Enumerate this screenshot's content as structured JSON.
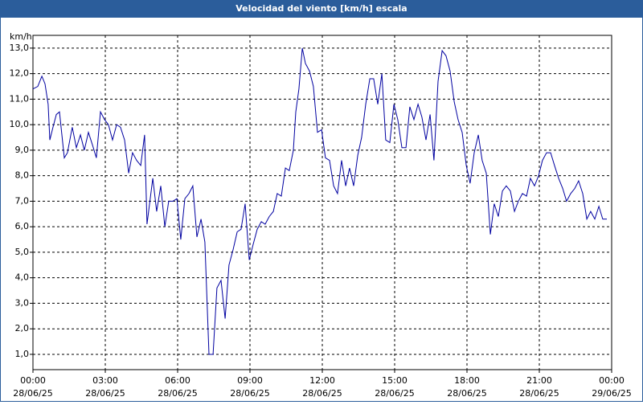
{
  "chart_data": {
    "type": "line",
    "title": "Velocidad del viento [km/h] escala",
    "y_unit": "km/h",
    "grid": true,
    "xlim": [
      0,
      24
    ],
    "ylim": [
      0.4,
      13.5
    ],
    "xticks": [
      {
        "value": 0,
        "label": "00:00",
        "date": "28/06/25"
      },
      {
        "value": 3,
        "label": "03:00",
        "date": "28/06/25"
      },
      {
        "value": 6,
        "label": "06:00",
        "date": "28/06/25"
      },
      {
        "value": 9,
        "label": "09:00",
        "date": "28/06/25"
      },
      {
        "value": 12,
        "label": "12:00",
        "date": "28/06/25"
      },
      {
        "value": 15,
        "label": "15:00",
        "date": "28/06/25"
      },
      {
        "value": 18,
        "label": "18:00",
        "date": "28/06/25"
      },
      {
        "value": 21,
        "label": "21:00",
        "date": "28/06/25"
      },
      {
        "value": 24,
        "label": "00:00",
        "date": "29/06/25"
      }
    ],
    "yticks": [
      {
        "value": 1,
        "label": "1,0"
      },
      {
        "value": 2,
        "label": "2,0"
      },
      {
        "value": 3,
        "label": "3,0"
      },
      {
        "value": 4,
        "label": "4,0"
      },
      {
        "value": 5,
        "label": "5,0"
      },
      {
        "value": 6,
        "label": "6,0"
      },
      {
        "value": 7,
        "label": "7,0"
      },
      {
        "value": 8,
        "label": "8,0"
      },
      {
        "value": 9,
        "label": "9,0"
      },
      {
        "value": 10,
        "label": "10,0"
      },
      {
        "value": 11,
        "label": "11,0"
      },
      {
        "value": 12,
        "label": "12,0"
      },
      {
        "value": 13,
        "label": "13,0"
      }
    ],
    "color": "#0000a0",
    "x": [
      0,
      0.2,
      0.37,
      0.5,
      0.63,
      0.7,
      0.83,
      0.97,
      1.1,
      1.3,
      1.43,
      1.63,
      1.8,
      1.97,
      2.13,
      2.3,
      2.47,
      2.63,
      2.8,
      2.97,
      3.13,
      3.3,
      3.47,
      3.63,
      3.8,
      3.97,
      4.13,
      4.3,
      4.47,
      4.63,
      4.73,
      4.97,
      5.13,
      5.3,
      5.47,
      5.63,
      5.8,
      5.97,
      6.13,
      6.3,
      6.47,
      6.63,
      6.8,
      6.97,
      7.13,
      7.3,
      7.47,
      7.63,
      7.8,
      7.97,
      8.13,
      8.3,
      8.47,
      8.63,
      8.8,
      8.97,
      9.13,
      9.3,
      9.47,
      9.63,
      9.8,
      9.97,
      10.13,
      10.3,
      10.47,
      10.63,
      10.8,
      10.9,
      11.03,
      11.17,
      11.3,
      11.47,
      11.63,
      11.8,
      11.97,
      12.13,
      12.3,
      12.47,
      12.63,
      12.8,
      12.97,
      13.13,
      13.3,
      13.47,
      13.63,
      13.8,
      13.97,
      14.13,
      14.3,
      14.47,
      14.63,
      14.8,
      14.97,
      15.13,
      15.3,
      15.47,
      15.63,
      15.8,
      15.97,
      16.13,
      16.3,
      16.47,
      16.63,
      16.8,
      16.97,
      17.13,
      17.3,
      17.47,
      17.63,
      17.8,
      17.97,
      18.13,
      18.3,
      18.47,
      18.63,
      18.8,
      18.97,
      19.13,
      19.3,
      19.47,
      19.63,
      19.8,
      19.97,
      20.13,
      20.3,
      20.47,
      20.63,
      20.8,
      20.97,
      21.13,
      21.3,
      21.47,
      21.63,
      21.8,
      21.97,
      22.13,
      22.3,
      22.47,
      22.63,
      22.8,
      22.97,
      23.13,
      23.3,
      23.47,
      23.63,
      23.8
    ],
    "values": [
      11.4,
      11.5,
      11.9,
      11.6,
      10.8,
      9.4,
      9.9,
      10.4,
      10.5,
      8.7,
      8.9,
      9.9,
      9.1,
      9.6,
      9.0,
      9.7,
      9.2,
      8.7,
      10.5,
      10.2,
      10.0,
      9.4,
      10.0,
      9.9,
      9.4,
      8.1,
      8.9,
      8.6,
      8.4,
      9.6,
      6.1,
      7.9,
      6.6,
      7.6,
      6.0,
      7.0,
      7.0,
      7.1,
      5.5,
      7.1,
      7.3,
      7.6,
      5.6,
      6.3,
      5.4,
      1.0,
      1.0,
      3.6,
      3.9,
      2.4,
      4.5,
      5.1,
      5.8,
      5.9,
      6.9,
      4.7,
      5.3,
      5.9,
      6.2,
      6.1,
      6.4,
      6.6,
      7.3,
      7.2,
      8.3,
      8.2,
      9.0,
      10.5,
      11.4,
      13.0,
      12.4,
      12.1,
      11.5,
      9.7,
      9.8,
      8.7,
      8.6,
      7.6,
      7.3,
      8.6,
      7.6,
      8.3,
      7.6,
      8.8,
      9.5,
      10.8,
      11.8,
      11.8,
      10.8,
      12.0,
      9.4,
      9.3,
      10.8,
      10.2,
      9.1,
      9.1,
      10.7,
      10.2,
      10.8,
      10.3,
      9.4,
      10.4,
      8.6,
      11.7,
      12.9,
      12.7,
      12.1,
      10.9,
      10.2,
      9.7,
      8.4,
      7.7,
      8.9,
      9.6,
      8.6,
      8.1,
      5.7,
      6.9,
      6.4,
      7.4,
      7.6,
      7.4,
      6.6,
      7.0,
      7.3,
      7.2,
      7.9,
      7.6,
      8.0,
      8.6,
      8.9,
      8.9,
      8.4,
      7.9,
      7.5,
      7.0,
      7.3,
      7.5,
      7.8,
      7.3,
      6.3,
      6.6,
      6.3,
      6.8,
      6.3,
      6.3
    ]
  }
}
